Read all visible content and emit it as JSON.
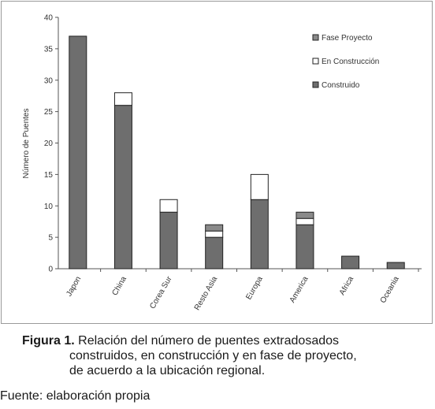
{
  "chart_data": {
    "type": "bar",
    "stacked": true,
    "ylabel": "Número de Puentes",
    "xlabel": "",
    "ylim": [
      0,
      40
    ],
    "yticks": [
      0,
      5,
      10,
      15,
      20,
      25,
      30,
      35,
      40
    ],
    "categories": [
      "Japon",
      "China",
      "Corea Sur",
      "Resto Asia",
      "Europa",
      "America",
      "Africa",
      "Oceania"
    ],
    "series": [
      {
        "name": "Construido",
        "color": "#6e6e6e",
        "values": [
          37,
          26,
          9,
          5,
          11,
          7,
          2,
          1
        ]
      },
      {
        "name": "En Construcción",
        "color": "#ffffff",
        "values": [
          0,
          2,
          2,
          1,
          4,
          1,
          0,
          0
        ]
      },
      {
        "name": "Fase Proyecto",
        "color": "#8a8a8a",
        "values": [
          0,
          0,
          0,
          1,
          0,
          1,
          0,
          0
        ]
      }
    ],
    "legend": {
      "position": "top-right",
      "order": [
        "Fase Proyecto",
        "En Construcción",
        "Construido"
      ]
    }
  },
  "caption": {
    "label": "Figura 1.",
    "line1": "Relación del número de puentes extradosados",
    "line2": "construidos, en construcción y en fase de proyecto,",
    "line3": "de acuerdo a la ubicación regional."
  },
  "source": "Fuente: elaboración propia"
}
